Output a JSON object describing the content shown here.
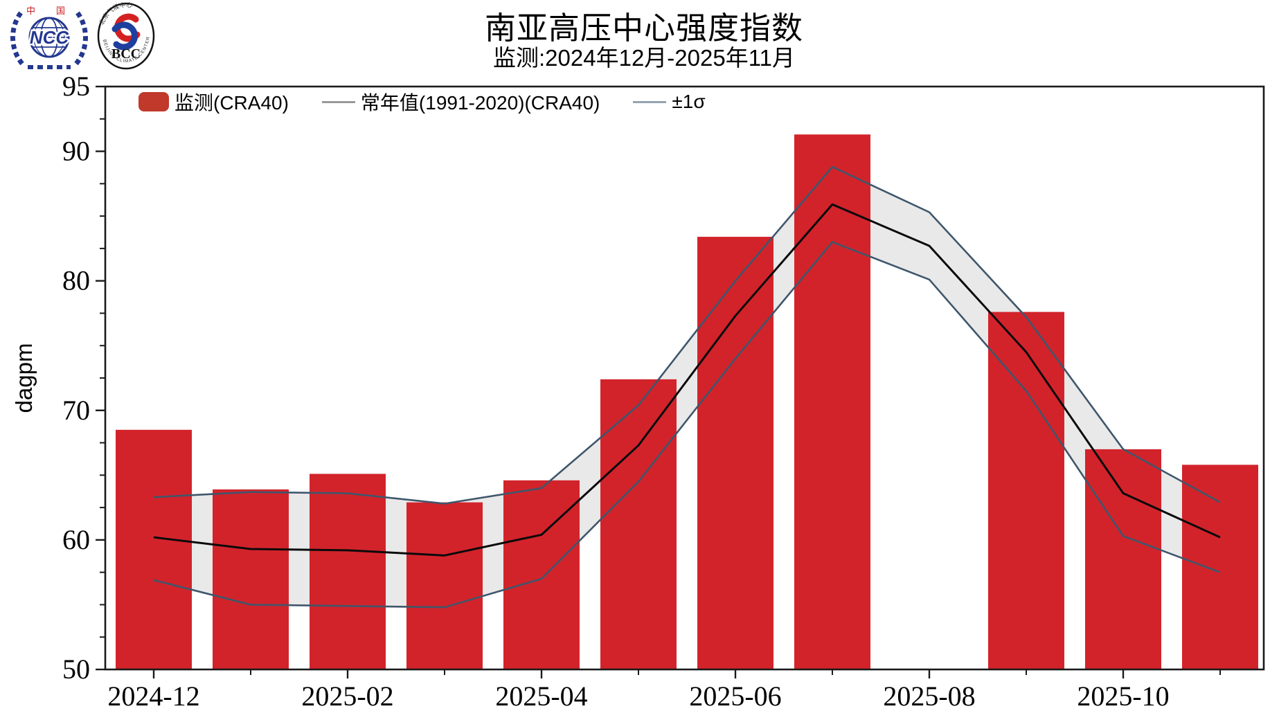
{
  "header": {
    "title": "南亚高压中心强度指数",
    "subtitle": "监测:2024年12月-2025年11月",
    "logo_ncc": {
      "country_left": "中",
      "country_right": "国",
      "acronym": "NCC"
    },
    "logo_bcc": {
      "acronym": "BCC",
      "ring_top": "北京气候中心",
      "ring_bottom": "BEIJING CLIMATE CENTER"
    }
  },
  "chart_data": {
    "type": "bar+line",
    "title": "南亚高压中心强度指数",
    "subtitle": "监测:2024年12月-2025年11月",
    "xlabel": "",
    "ylabel": "dagpm",
    "ylim": [
      50,
      95
    ],
    "yticks_major": [
      50,
      60,
      70,
      80,
      90,
      95
    ],
    "ytick_minor_step": 2.5,
    "grid": false,
    "legend_position": "upper-left-inside",
    "x": [
      "2024-12",
      "2025-01",
      "2025-02",
      "2025-03",
      "2025-04",
      "2025-05",
      "2025-06",
      "2025-07",
      "2025-08",
      "2025-09",
      "2025-10",
      "2025-11"
    ],
    "xticks_labeled": [
      "2024-12",
      "2025-02",
      "2025-04",
      "2025-06",
      "2025-08",
      "2025-10"
    ],
    "series": [
      {
        "name": "监测(CRA40)",
        "type": "bar",
        "color": "#d2232b",
        "values": [
          68.5,
          63.9,
          65.1,
          62.9,
          64.6,
          72.4,
          83.4,
          91.3,
          null,
          77.6,
          67.0,
          65.8
        ]
      },
      {
        "name": "常年值(1991-2020)(CRA40)",
        "type": "line",
        "color": "#0a0a0a",
        "values": [
          60.2,
          59.3,
          59.2,
          58.8,
          60.4,
          67.3,
          77.3,
          85.9,
          82.7,
          74.5,
          63.6,
          60.2
        ]
      },
      {
        "name": "+1σ",
        "type": "line",
        "color": "#3f566b",
        "values": [
          63.3,
          63.7,
          63.6,
          62.8,
          64.0,
          70.4,
          80.0,
          88.8,
          85.3,
          77.2,
          67.0,
          62.9
        ]
      },
      {
        "name": "-1σ",
        "type": "line",
        "color": "#3f566b",
        "values": [
          56.9,
          55.0,
          54.9,
          54.8,
          57.0,
          64.5,
          74.0,
          83.0,
          80.1,
          71.5,
          60.3,
          57.5
        ]
      }
    ],
    "band": {
      "between": [
        "+1σ",
        "-1σ"
      ],
      "color": "#e9e9e9"
    },
    "legend": [
      {
        "label": "监测(CRA40)",
        "swatch": "bar",
        "color": "#c0392b"
      },
      {
        "label": "常年值(1991-2020)(CRA40)",
        "swatch": "line",
        "color": "#999999"
      },
      {
        "label": "±1σ",
        "swatch": "line",
        "color": "#93a3b1"
      }
    ]
  }
}
